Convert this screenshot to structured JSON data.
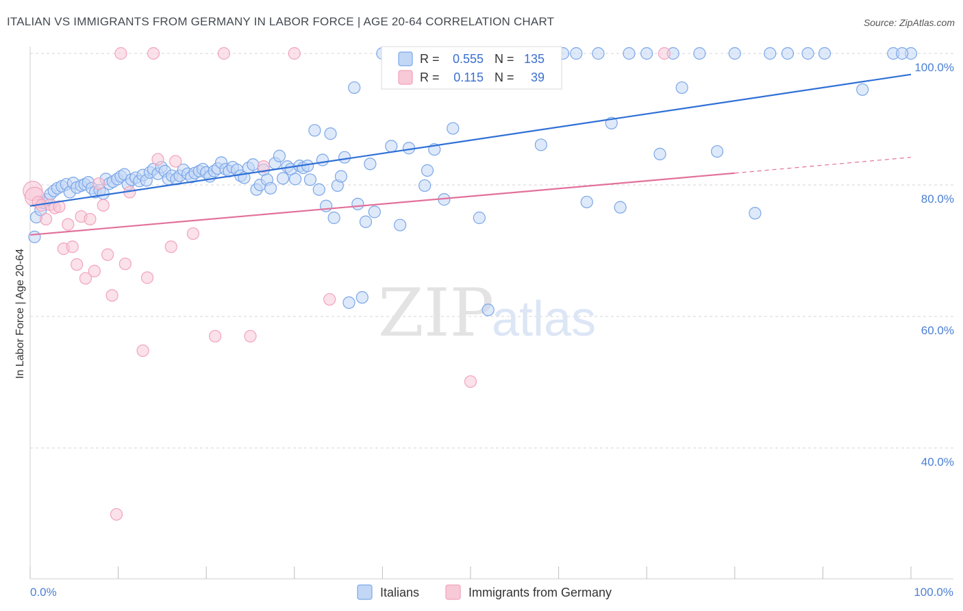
{
  "title": "ITALIAN VS IMMIGRANTS FROM GERMANY IN LABOR FORCE | AGE 20-64 CORRELATION CHART",
  "source": "Source: ZipAtlas.com",
  "watermark": {
    "zip": "ZIP",
    "atlas": "atlas"
  },
  "chart_data": {
    "type": "scatter",
    "title": "ITALIAN VS IMMIGRANTS FROM GERMANY IN LABOR FORCE | AGE 20-64 CORRELATION CHART",
    "xlabel": "",
    "ylabel": "In Labor Force | Age 20-64",
    "xlim": [
      0,
      100
    ],
    "ylim": [
      20,
      102
    ],
    "x_tick_labels": [
      {
        "value": 0,
        "label": "0.0%"
      },
      {
        "value": 100,
        "label": "100.0%"
      }
    ],
    "y_tick_labels": [
      {
        "value": 100,
        "label": "100.0%"
      },
      {
        "value": 80,
        "label": "80.0%"
      },
      {
        "value": 60,
        "label": "60.0%"
      },
      {
        "value": 40,
        "label": "40.0%"
      }
    ],
    "grid": "horizontal dashed",
    "legend_stats": [
      {
        "r_label": "R =",
        "r": "0.555",
        "n_label": "N =",
        "n": "135",
        "color": "#7aa6e8"
      },
      {
        "r_label": "R =",
        "r": "0.115",
        "n_label": "N =",
        "n": "39",
        "color": "#f1a3bc"
      }
    ],
    "series": [
      {
        "name": "Italians",
        "color": "#7aa6e8",
        "fill": "#c2d7f5",
        "trend": {
          "x": [
            0,
            100
          ],
          "y": [
            76.8,
            96.8
          ],
          "color": "#2e6fd6"
        },
        "points": [
          [
            0.5,
            72.1
          ],
          [
            0.7,
            75.1
          ],
          [
            1.2,
            76.2
          ],
          [
            1.5,
            77.3
          ],
          [
            1.9,
            77.8
          ],
          [
            2.3,
            78.6
          ],
          [
            2.7,
            79.1
          ],
          [
            3.1,
            79.5
          ],
          [
            3.6,
            79.8
          ],
          [
            4.1,
            80.1
          ],
          [
            4.5,
            78.9
          ],
          [
            4.9,
            80.3
          ],
          [
            5.3,
            79.6
          ],
          [
            5.8,
            79.9
          ],
          [
            6.2,
            80.1
          ],
          [
            6.6,
            80.4
          ],
          [
            7.0,
            79.5
          ],
          [
            7.4,
            78.9
          ],
          [
            7.9,
            79.2
          ],
          [
            8.3,
            78.7
          ],
          [
            8.6,
            80.9
          ],
          [
            9.0,
            80.2
          ],
          [
            9.4,
            80.5
          ],
          [
            9.9,
            80.9
          ],
          [
            10.3,
            81.3
          ],
          [
            10.7,
            81.6
          ],
          [
            11.1,
            80.1
          ],
          [
            11.5,
            80.8
          ],
          [
            12.0,
            81.1
          ],
          [
            12.4,
            80.6
          ],
          [
            12.8,
            81.5
          ],
          [
            13.2,
            80.7
          ],
          [
            13.6,
            81.9
          ],
          [
            14.0,
            82.4
          ],
          [
            14.5,
            81.7
          ],
          [
            14.9,
            82.7
          ],
          [
            15.3,
            82.1
          ],
          [
            15.7,
            80.9
          ],
          [
            16.1,
            81.4
          ],
          [
            16.6,
            80.9
          ],
          [
            17.0,
            81.4
          ],
          [
            17.4,
            82.3
          ],
          [
            17.9,
            81.7
          ],
          [
            18.3,
            81.2
          ],
          [
            18.7,
            81.8
          ],
          [
            19.2,
            82.1
          ],
          [
            19.6,
            82.4
          ],
          [
            20.0,
            81.9
          ],
          [
            20.4,
            81.3
          ],
          [
            20.9,
            82.1
          ],
          [
            21.3,
            82.5
          ],
          [
            21.7,
            83.4
          ],
          [
            22.2,
            82.4
          ],
          [
            22.6,
            82.1
          ],
          [
            23.0,
            82.7
          ],
          [
            23.5,
            82.3
          ],
          [
            23.9,
            81.4
          ],
          [
            24.3,
            81.1
          ],
          [
            24.8,
            82.6
          ],
          [
            25.3,
            83.1
          ],
          [
            25.7,
            79.3
          ],
          [
            26.1,
            80.0
          ],
          [
            26.5,
            82.3
          ],
          [
            26.9,
            80.8
          ],
          [
            27.3,
            79.5
          ],
          [
            27.8,
            83.3
          ],
          [
            28.3,
            84.4
          ],
          [
            28.7,
            81.0
          ],
          [
            29.2,
            82.8
          ],
          [
            29.6,
            82.4
          ],
          [
            30.1,
            80.9
          ],
          [
            30.6,
            82.9
          ],
          [
            31.0,
            82.6
          ],
          [
            31.5,
            82.9
          ],
          [
            31.8,
            80.8
          ],
          [
            32.3,
            88.3
          ],
          [
            32.8,
            79.3
          ],
          [
            33.2,
            83.8
          ],
          [
            33.6,
            76.8
          ],
          [
            34.1,
            87.8
          ],
          [
            34.5,
            75.0
          ],
          [
            34.9,
            79.9
          ],
          [
            35.3,
            81.3
          ],
          [
            35.7,
            84.2
          ],
          [
            36.2,
            62.1
          ],
          [
            36.8,
            94.8
          ],
          [
            37.2,
            77.1
          ],
          [
            37.7,
            62.9
          ],
          [
            38.1,
            74.4
          ],
          [
            38.6,
            83.2
          ],
          [
            39.1,
            75.9
          ],
          [
            40.0,
            100.0
          ],
          [
            41.0,
            85.9
          ],
          [
            42.0,
            73.9
          ],
          [
            43.0,
            85.6
          ],
          [
            44.0,
            100.0
          ],
          [
            44.8,
            79.9
          ],
          [
            45.1,
            82.2
          ],
          [
            45.9,
            85.4
          ],
          [
            46.5,
            100.0
          ],
          [
            47.0,
            77.8
          ],
          [
            47.5,
            100.0
          ],
          [
            48.0,
            88.6
          ],
          [
            49.0,
            100.0
          ],
          [
            50.0,
            100.0
          ],
          [
            51.0,
            75.0
          ],
          [
            52.0,
            61.0
          ],
          [
            53.0,
            100.0
          ],
          [
            54.6,
            100.0
          ],
          [
            56.0,
            100.0
          ],
          [
            58.0,
            86.1
          ],
          [
            59.0,
            100.0
          ],
          [
            60.5,
            100.0
          ],
          [
            62.0,
            100.0
          ],
          [
            63.2,
            77.4
          ],
          [
            64.5,
            100.0
          ],
          [
            66.0,
            89.4
          ],
          [
            67.0,
            76.6
          ],
          [
            68.0,
            100.0
          ],
          [
            70.0,
            100.0
          ],
          [
            71.5,
            84.7
          ],
          [
            73.0,
            100.0
          ],
          [
            74.0,
            94.8
          ],
          [
            76.0,
            100.0
          ],
          [
            78.0,
            85.1
          ],
          [
            80.0,
            100.0
          ],
          [
            82.3,
            75.7
          ],
          [
            86.0,
            100.0
          ],
          [
            88.3,
            100.0
          ],
          [
            90.2,
            100.0
          ],
          [
            94.5,
            94.5
          ],
          [
            98.0,
            100.0
          ],
          [
            100.0,
            100.0
          ],
          [
            99.0,
            100.0
          ],
          [
            84.0,
            100.0
          ]
        ]
      },
      {
        "name": "Immigrants from Germany",
        "color": "#f1a3bc",
        "fill": "#f8c9d7",
        "trend": {
          "x": [
            0,
            80
          ],
          "y": [
            72.4,
            81.8
          ],
          "dash_to": {
            "x": 100,
            "y": 84.2
          },
          "color": "#e2709a"
        },
        "points": [
          [
            0.3,
            79.1
          ],
          [
            0.5,
            78.2
          ],
          [
            0.9,
            77.4
          ],
          [
            1.3,
            76.9
          ],
          [
            1.8,
            74.8
          ],
          [
            2.3,
            77.0
          ],
          [
            2.8,
            76.5
          ],
          [
            3.3,
            76.7
          ],
          [
            3.8,
            70.3
          ],
          [
            4.3,
            74.0
          ],
          [
            4.8,
            70.6
          ],
          [
            5.3,
            67.9
          ],
          [
            5.8,
            75.2
          ],
          [
            6.3,
            65.8
          ],
          [
            6.8,
            74.8
          ],
          [
            7.3,
            66.9
          ],
          [
            7.8,
            80.2
          ],
          [
            8.3,
            76.9
          ],
          [
            8.8,
            69.4
          ],
          [
            9.3,
            63.2
          ],
          [
            9.8,
            29.9
          ],
          [
            10.3,
            100.0
          ],
          [
            10.8,
            68.0
          ],
          [
            11.3,
            78.9
          ],
          [
            12.8,
            54.8
          ],
          [
            13.3,
            65.9
          ],
          [
            14.0,
            100.0
          ],
          [
            14.5,
            83.9
          ],
          [
            16.0,
            70.6
          ],
          [
            16.5,
            83.6
          ],
          [
            18.5,
            72.6
          ],
          [
            21.0,
            57.0
          ],
          [
            22.0,
            100.0
          ],
          [
            25.0,
            57.0
          ],
          [
            26.5,
            82.8
          ],
          [
            30.0,
            100.0
          ],
          [
            34.0,
            62.6
          ],
          [
            50.0,
            50.1
          ],
          [
            72.0,
            100.0
          ]
        ]
      }
    ]
  },
  "legend": {
    "items": [
      {
        "label": "Italians",
        "color": "#c2d7f5",
        "stroke": "#7aa6e8"
      },
      {
        "label": "Immigrants from Germany",
        "color": "#f8c9d7",
        "stroke": "#f1a3bc"
      }
    ]
  }
}
